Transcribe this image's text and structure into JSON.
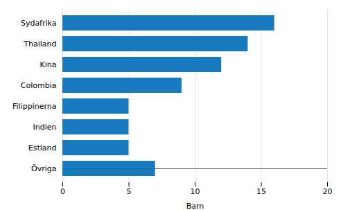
{
  "chart_data": {
    "type": "bar",
    "orientation": "horizontal",
    "categories": [
      "Övriga",
      "Estland",
      "Indien",
      "Filippinerna",
      "Colombia",
      "Kina",
      "Thailand",
      "Sydafrika"
    ],
    "values": [
      7,
      5,
      5,
      5,
      9,
      12,
      14,
      16
    ],
    "color": "#1a7abf",
    "xlabel": "Barn",
    "xlim": [
      0,
      20
    ],
    "xticks": [
      0,
      5,
      10,
      15,
      20
    ],
    "grid": true
  }
}
